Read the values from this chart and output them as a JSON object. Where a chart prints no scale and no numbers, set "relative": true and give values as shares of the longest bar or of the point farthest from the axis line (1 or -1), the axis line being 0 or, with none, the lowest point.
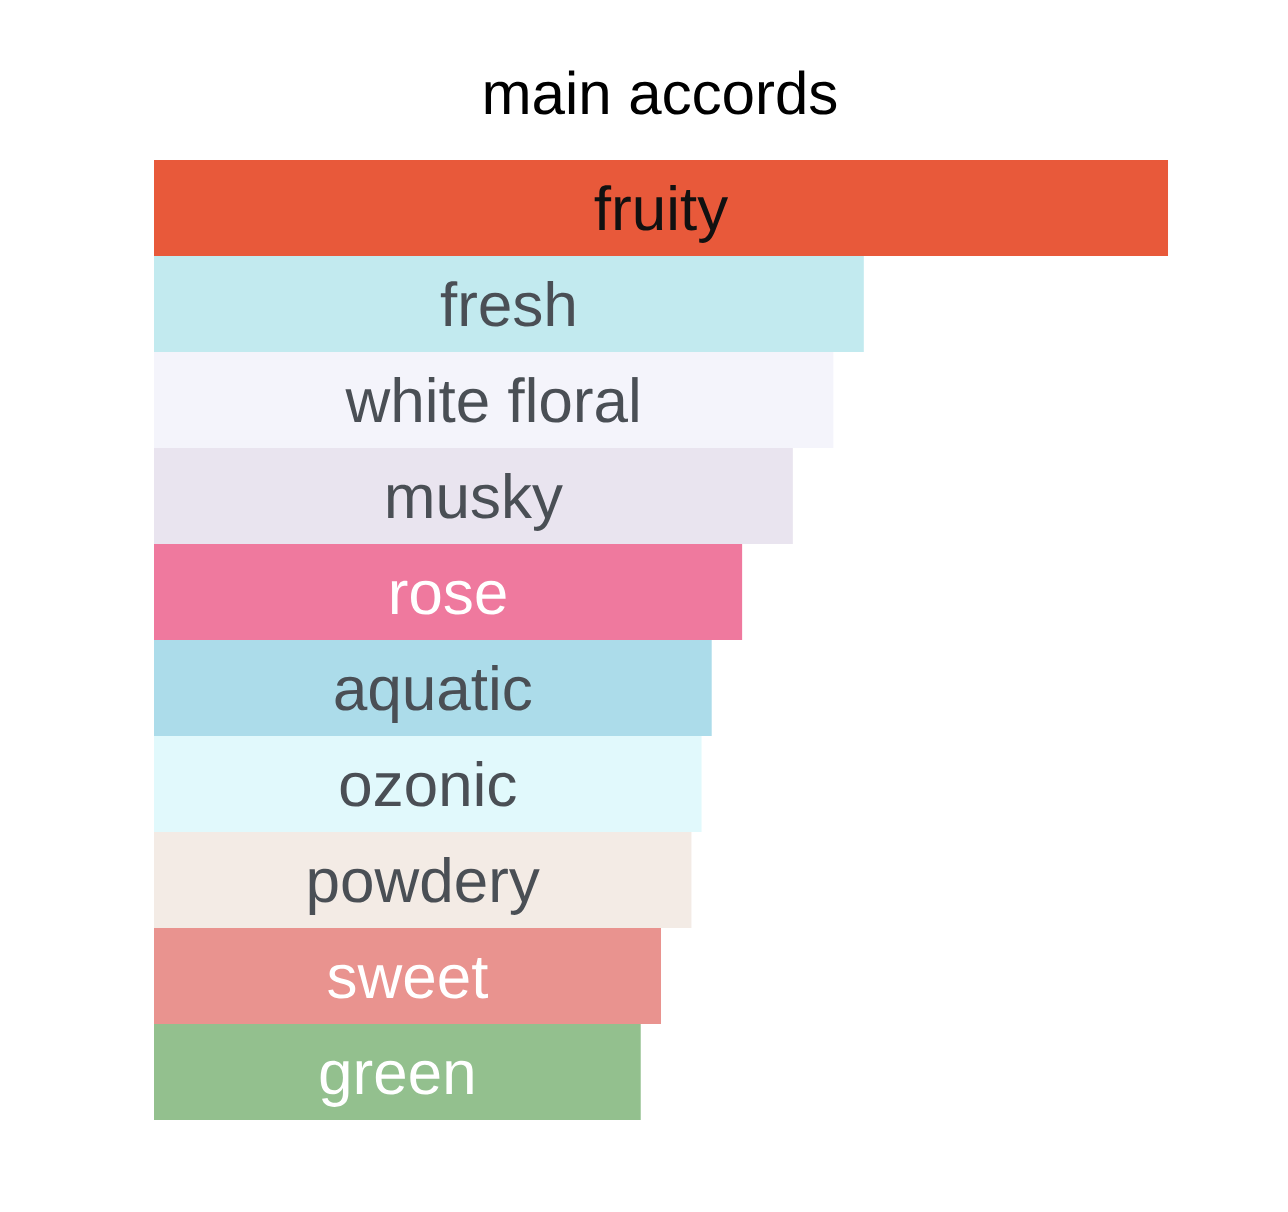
{
  "chart_data": {
    "type": "bar",
    "title": "main accords",
    "orientation": "horizontal",
    "relative": true,
    "categories": [
      "fruity",
      "fresh",
      "white floral",
      "musky",
      "rose",
      "aquatic",
      "ozonic",
      "powdery",
      "sweet",
      "green"
    ],
    "values": [
      1,
      0.7,
      0.67,
      0.63,
      0.58,
      0.55,
      0.54,
      0.53,
      0.5,
      0.48
    ],
    "colors": [
      "#e8593a",
      "#c2eaef",
      "#f4f4fb",
      "#e9e4ef",
      "#ef799e",
      "#acdcea",
      "#e1f9fc",
      "#f3ebe5",
      "#e9938f",
      "#93c08e"
    ]
  }
}
